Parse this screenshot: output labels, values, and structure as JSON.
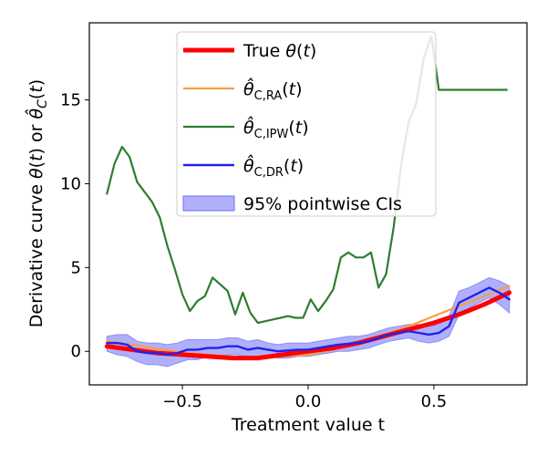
{
  "chart_data": {
    "type": "line",
    "title": "",
    "xlabel": "Treatment value t",
    "ylabel": "Derivative curve θ(t) or θ̂_C(t)",
    "xlim": [
      -0.87,
      0.87
    ],
    "ylim": [
      -2.0,
      19.6
    ],
    "xticks": [
      -0.5,
      0.0,
      0.5
    ],
    "xtick_labels": [
      "−0.5",
      "0.0",
      "0.5"
    ],
    "yticks": [
      0,
      5,
      10,
      15
    ],
    "ytick_labels": [
      "0",
      "5",
      "10",
      "15"
    ],
    "grid": false,
    "legend_position": "upper center",
    "series": [
      {
        "name": "True θ(t)",
        "key": "true",
        "color": "#ff0000",
        "x": [
          -0.8,
          -0.7,
          -0.6,
          -0.5,
          -0.4,
          -0.3,
          -0.2,
          -0.1,
          0.0,
          0.1,
          0.2,
          0.3,
          0.4,
          0.5,
          0.6,
          0.7,
          0.8
        ],
        "y": [
          0.3,
          0.1,
          -0.1,
          -0.2,
          -0.3,
          -0.4,
          -0.4,
          -0.2,
          0.0,
          0.2,
          0.5,
          0.9,
          1.3,
          1.7,
          2.2,
          2.8,
          3.5
        ]
      },
      {
        "name": "θ̂_C,RA(t)",
        "key": "ra",
        "color": "#f5a040",
        "x": [
          -0.8,
          -0.7,
          -0.6,
          -0.5,
          -0.4,
          -0.3,
          -0.2,
          -0.1,
          0.0,
          0.1,
          0.2,
          0.3,
          0.4,
          0.5,
          0.6,
          0.7,
          0.8
        ],
        "y": [
          0.6,
          0.4,
          0.15,
          -0.05,
          -0.2,
          -0.3,
          -0.35,
          -0.3,
          -0.2,
          0.1,
          0.5,
          1.0,
          1.5,
          2.1,
          2.7,
          3.3,
          3.9
        ]
      },
      {
        "name": "θ̂_C,IPW(t)",
        "key": "ipw",
        "color": "#2e7d32",
        "x": [
          -0.8,
          -0.77,
          -0.74,
          -0.71,
          -0.68,
          -0.65,
          -0.62,
          -0.59,
          -0.56,
          -0.53,
          -0.5,
          -0.47,
          -0.44,
          -0.41,
          -0.38,
          -0.35,
          -0.32,
          -0.29,
          -0.26,
          -0.23,
          -0.2,
          -0.17,
          -0.14,
          -0.11,
          -0.08,
          -0.05,
          -0.02,
          0.01,
          0.04,
          0.07,
          0.1,
          0.13,
          0.16,
          0.19,
          0.22,
          0.25,
          0.28,
          0.31,
          0.34,
          0.37,
          0.4,
          0.43,
          0.46,
          0.49,
          0.52,
          0.55,
          0.58,
          0.61,
          0.64,
          0.67,
          0.7,
          0.73,
          0.76,
          0.79
        ],
        "y": [
          9.4,
          11.2,
          12.2,
          11.6,
          10.1,
          9.5,
          8.9,
          8.0,
          6.3,
          4.9,
          3.4,
          2.4,
          3.0,
          3.3,
          4.4,
          4.0,
          3.6,
          2.2,
          3.5,
          2.3,
          1.7,
          1.8,
          1.9,
          2.0,
          2.1,
          2.0,
          2.0,
          3.1,
          2.4,
          3.0,
          3.7,
          5.6,
          5.9,
          5.6,
          5.6,
          5.9,
          3.8,
          4.6,
          7.4,
          11.2,
          13.7,
          14.8,
          17.5,
          18.8,
          15.6,
          15.6,
          15.6,
          15.6,
          15.6,
          15.6,
          15.6,
          15.6,
          15.6,
          15.6
        ]
      },
      {
        "name": "θ̂_C,DR(t)",
        "key": "dr",
        "color": "#2222ee",
        "x": [
          -0.8,
          -0.76,
          -0.72,
          -0.68,
          -0.64,
          -0.6,
          -0.56,
          -0.52,
          -0.48,
          -0.44,
          -0.4,
          -0.36,
          -0.32,
          -0.28,
          -0.24,
          -0.2,
          -0.16,
          -0.12,
          -0.08,
          -0.04,
          0.0,
          0.04,
          0.08,
          0.12,
          0.16,
          0.2,
          0.24,
          0.28,
          0.32,
          0.36,
          0.4,
          0.44,
          0.48,
          0.52,
          0.56,
          0.6,
          0.64,
          0.68,
          0.72,
          0.76,
          0.8
        ],
        "y": [
          0.5,
          0.5,
          0.4,
          0.0,
          -0.1,
          -0.1,
          -0.2,
          -0.1,
          0.1,
          0.1,
          0.2,
          0.2,
          0.3,
          0.3,
          0.1,
          0.2,
          0.1,
          0.0,
          0.05,
          0.1,
          0.1,
          0.2,
          0.3,
          0.4,
          0.45,
          0.5,
          0.6,
          0.8,
          1.0,
          1.1,
          1.2,
          1.1,
          1.0,
          1.1,
          1.5,
          2.9,
          3.2,
          3.5,
          3.8,
          3.5,
          3.1
        ]
      }
    ],
    "ci_band": {
      "name": "95% pointwise CIs",
      "key": "ci",
      "color": "#6f6ff5",
      "x": [
        -0.8,
        -0.76,
        -0.72,
        -0.68,
        -0.64,
        -0.6,
        -0.56,
        -0.52,
        -0.48,
        -0.44,
        -0.4,
        -0.36,
        -0.32,
        -0.28,
        -0.24,
        -0.2,
        -0.16,
        -0.12,
        -0.08,
        -0.04,
        0.0,
        0.04,
        0.08,
        0.12,
        0.16,
        0.2,
        0.24,
        0.28,
        0.32,
        0.36,
        0.4,
        0.44,
        0.48,
        0.52,
        0.56,
        0.6,
        0.64,
        0.68,
        0.72,
        0.76,
        0.8
      ],
      "lower": [
        0.0,
        -0.2,
        -0.3,
        -0.6,
        -0.8,
        -0.8,
        -0.9,
        -0.7,
        -0.5,
        -0.5,
        -0.3,
        -0.3,
        -0.2,
        -0.2,
        -0.4,
        -0.3,
        -0.3,
        -0.4,
        -0.4,
        -0.3,
        -0.3,
        -0.2,
        -0.1,
        0.0,
        0.0,
        0.1,
        0.2,
        0.4,
        0.6,
        0.7,
        0.8,
        0.6,
        0.5,
        0.6,
        0.9,
        2.2,
        2.6,
        2.9,
        3.2,
        2.8,
        2.3
      ],
      "upper": [
        0.9,
        1.0,
        1.0,
        0.6,
        0.5,
        0.5,
        0.4,
        0.5,
        0.7,
        0.7,
        0.7,
        0.7,
        0.8,
        0.8,
        0.6,
        0.7,
        0.5,
        0.4,
        0.5,
        0.5,
        0.5,
        0.6,
        0.7,
        0.8,
        0.9,
        0.9,
        1.0,
        1.2,
        1.4,
        1.5,
        1.6,
        1.6,
        1.5,
        1.6,
        2.1,
        3.6,
        3.8,
        4.1,
        4.4,
        4.2,
        3.9
      ]
    },
    "legend": [
      {
        "key": "true",
        "type": "line",
        "label": "True θ(t)"
      },
      {
        "key": "ra",
        "type": "line",
        "label": "θ̂_C,RA(t)"
      },
      {
        "key": "ipw",
        "type": "line",
        "label": "θ̂_C,IPW(t)"
      },
      {
        "key": "dr",
        "type": "line",
        "label": "θ̂_C,DR(t)"
      },
      {
        "key": "ci",
        "type": "patch",
        "label": "95% pointwise CIs"
      }
    ]
  }
}
